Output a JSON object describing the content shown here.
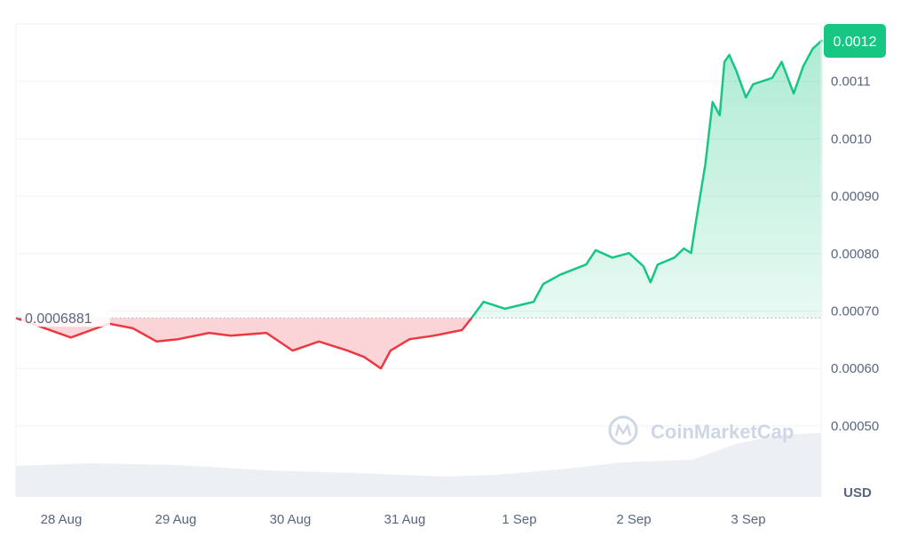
{
  "chart_data": {
    "type": "area",
    "ylabel": "",
    "xlabel": "",
    "currency_label": "USD",
    "ylim": [
      0.00042,
      0.00122
    ],
    "y_ticks": [
      "0.00050",
      "0.00060",
      "0.00070",
      "0.00080",
      "0.00090",
      "0.0010",
      "0.0011"
    ],
    "x_ticks": [
      "28 Aug",
      "29 Aug",
      "30 Aug",
      "31 Aug",
      "1 Sep",
      "2 Sep",
      "3 Sep"
    ],
    "baseline_value": 0.0006881,
    "baseline_label": "0.0006881",
    "current_price_label": "0.0012",
    "grid": true,
    "colors": {
      "up": "#16c784",
      "down": "#ea3943",
      "grid": "#eff2f5",
      "label_bg": "#16c784"
    },
    "watermark": "CoinMarketCap",
    "series": [
      {
        "points": [
          [
            "27 Aug 14:30",
            0.000688
          ],
          [
            "28 Aug 02:00",
            0.000654
          ],
          [
            "28 Aug 10:00",
            0.000678
          ],
          [
            "28 Aug 15:00",
            0.00067
          ],
          [
            "28 Aug 20:00",
            0.000647
          ],
          [
            "29 Aug 00:30",
            0.000651
          ],
          [
            "29 Aug 07:00",
            0.000662
          ],
          [
            "29 Aug 11:30",
            0.000657
          ],
          [
            "29 Aug 19:00",
            0.000662
          ],
          [
            "30 Aug 00:30",
            0.000631
          ],
          [
            "30 Aug 06:00",
            0.000647
          ],
          [
            "30 Aug 12:00",
            0.000631
          ],
          [
            "30 Aug 15:30",
            0.00062
          ],
          [
            "30 Aug 19:00",
            0.0006
          ],
          [
            "30 Aug 21:00",
            0.000631
          ],
          [
            "31 Aug 01:00",
            0.000651
          ],
          [
            "31 Aug 06:00",
            0.000657
          ],
          [
            "31 Aug 12:00",
            0.000667
          ],
          [
            "31 Aug 14:00",
            0.000688
          ],
          [
            "31 Aug 16:30",
            0.000716
          ],
          [
            "31 Aug 21:00",
            0.000704
          ],
          [
            "1 Sep 03:00",
            0.000716
          ],
          [
            "1 Sep 05:00",
            0.000747
          ],
          [
            "1 Sep 08:30",
            0.000763
          ],
          [
            "1 Sep 14:00",
            0.000781
          ],
          [
            "1 Sep 16:00",
            0.000806
          ],
          [
            "1 Sep 19:30",
            0.000793
          ],
          [
            "1 Sep 23:00",
            0.000801
          ],
          [
            "2 Sep 02:00",
            0.000778
          ],
          [
            "2 Sep 03:30",
            0.00075
          ],
          [
            "2 Sep 05:00",
            0.000781
          ],
          [
            "2 Sep 08:30",
            0.000793
          ],
          [
            "2 Sep 10:30",
            0.000809
          ],
          [
            "2 Sep 12:00",
            0.000801
          ],
          [
            "2 Sep 13:00",
            0.000855
          ],
          [
            "2 Sep 15:00",
            0.000956
          ],
          [
            "2 Sep 16:30",
            0.001064
          ],
          [
            "2 Sep 18:00",
            0.001041
          ],
          [
            "2 Sep 19:00",
            0.001134
          ],
          [
            "2 Sep 20:00",
            0.001146
          ],
          [
            "2 Sep 21:30",
            0.001118
          ],
          [
            "2 Sep 23:30",
            0.001072
          ],
          [
            "3 Sep 01:00",
            0.001095
          ],
          [
            "3 Sep 05:00",
            0.001106
          ],
          [
            "3 Sep 07:00",
            0.001134
          ],
          [
            "3 Sep 09:30",
            0.001079
          ],
          [
            "3 Sep 11:30",
            0.001126
          ],
          [
            "3 Sep 13:30",
            0.001157
          ],
          [
            "3 Sep 15:30",
            0.001172
          ]
        ]
      }
    ]
  }
}
